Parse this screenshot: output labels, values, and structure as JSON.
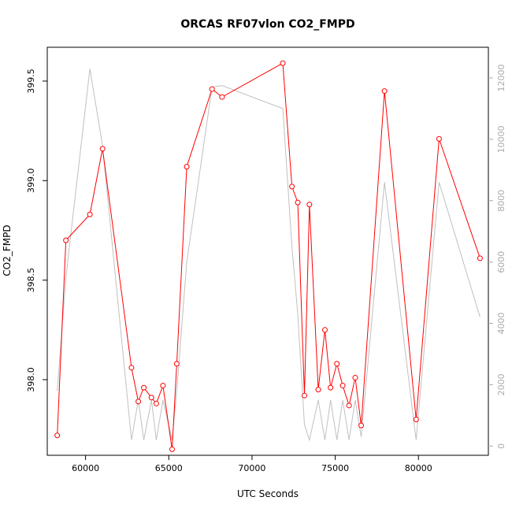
{
  "chart_data": {
    "type": "line",
    "title": "ORCAS RF07vlon CO2_FMPD",
    "xlabel": "UTC Seconds",
    "ylabel": "CO2_FMPD",
    "xlim": [
      57700,
      84200
    ],
    "ylim": [
      397.62,
      399.67
    ],
    "y2lim": [
      -300,
      13000
    ],
    "x_ticks": [
      60000,
      65000,
      70000,
      75000,
      80000
    ],
    "x_tick_labels": [
      "60000",
      "65000",
      "70000",
      "75000",
      "80000"
    ],
    "y_ticks": [
      398.0,
      398.5,
      399.0,
      399.5
    ],
    "y_tick_labels": [
      "398.0",
      "398.5",
      "399.0",
      "399.5"
    ],
    "y2_ticks": [
      0,
      2000,
      4000,
      6000,
      8000,
      10000,
      12000
    ],
    "y2_tick_labels": [
      "0",
      "2000",
      "4000",
      "6000",
      "8000",
      "10000",
      "12000"
    ],
    "grid": false,
    "colors": {
      "co2": "#ff0000",
      "lon": "#c0c0c0"
    },
    "series": [
      {
        "values": [
          [
            58300,
            397.72
          ],
          [
            58820,
            398.7
          ],
          [
            60260,
            398.83
          ],
          [
            61020,
            399.16
          ],
          [
            62760,
            398.06
          ],
          [
            63170,
            397.89
          ],
          [
            63500,
            397.96
          ],
          [
            63960,
            397.91
          ],
          [
            64250,
            397.88
          ],
          [
            64650,
            397.97
          ],
          [
            65200,
            397.65
          ],
          [
            65480,
            398.08
          ],
          [
            66080,
            399.07
          ],
          [
            67600,
            399.46
          ],
          [
            68200,
            399.42
          ],
          [
            71850,
            399.59
          ],
          [
            72400,
            398.97
          ],
          [
            72750,
            398.89
          ],
          [
            73150,
            397.92
          ],
          [
            73450,
            398.88
          ],
          [
            73980,
            397.95
          ],
          [
            74380,
            398.25
          ],
          [
            74720,
            397.96
          ],
          [
            75100,
            398.08
          ],
          [
            75450,
            397.97
          ],
          [
            75830,
            397.87
          ],
          [
            76200,
            398.01
          ],
          [
            76560,
            397.77
          ],
          [
            77960,
            399.45
          ],
          [
            79860,
            397.8
          ],
          [
            81240,
            399.21
          ],
          [
            83700,
            398.61
          ]
        ]
      },
      {
        "values": [
          [
            58300,
            1800
          ],
          [
            58820,
            5500
          ],
          [
            60260,
            12300
          ],
          [
            61020,
            9800
          ],
          [
            62760,
            200
          ],
          [
            63170,
            1500
          ],
          [
            63500,
            200
          ],
          [
            63960,
            1500
          ],
          [
            64250,
            200
          ],
          [
            64650,
            1500
          ],
          [
            65200,
            200
          ],
          [
            65480,
            1800
          ],
          [
            66080,
            6000
          ],
          [
            67600,
            11700
          ],
          [
            68200,
            11750
          ],
          [
            71850,
            11000
          ],
          [
            72400,
            6500
          ],
          [
            72750,
            4300
          ],
          [
            73150,
            700
          ],
          [
            73450,
            200
          ],
          [
            73980,
            1500
          ],
          [
            74380,
            200
          ],
          [
            74720,
            1500
          ],
          [
            75100,
            200
          ],
          [
            75450,
            1500
          ],
          [
            75830,
            200
          ],
          [
            76200,
            1500
          ],
          [
            76560,
            300
          ],
          [
            77960,
            8600
          ],
          [
            79860,
            200
          ],
          [
            81240,
            8600
          ],
          [
            83700,
            4200
          ]
        ]
      }
    ]
  }
}
